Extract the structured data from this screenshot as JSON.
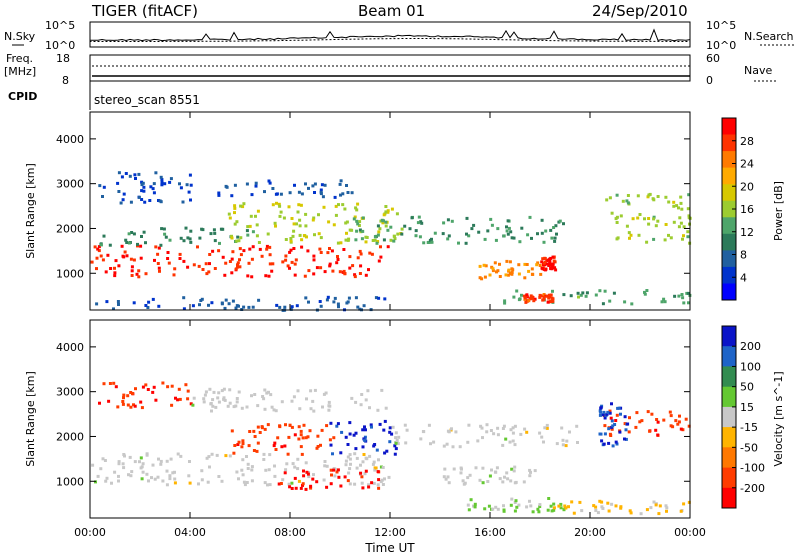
{
  "header": {
    "station": "TIGER (fitACF)",
    "beam": "Beam 01",
    "date": "24/Sep/2010"
  },
  "strips": {
    "nsky_label": "N.Sky",
    "nsky_ticks": [
      "10^5",
      "10^0"
    ],
    "nsearch_label": "N.Search",
    "freq_label_1": "Freq.",
    "freq_label_2": "[MHz]",
    "freq_ticks": [
      "18",
      "8"
    ],
    "nave_label": "Nave",
    "nave_ticks": [
      "60",
      "0"
    ],
    "cpid_label": "CPID",
    "cpid_value": "stereo_scan 8551"
  },
  "x_axis": {
    "label": "Time UT",
    "ticks": [
      "00:00",
      "04:00",
      "08:00",
      "12:00",
      "16:00",
      "20:00",
      "00:00"
    ]
  },
  "chart_data": [
    {
      "type": "heatmap",
      "title": "",
      "quantity": "Power",
      "xlabel": "Time UT",
      "ylabel": "Slant Range [km]",
      "xlim": [
        "00:00",
        "24:00"
      ],
      "ylim": [
        180,
        4600
      ],
      "yticks": [
        1000,
        2000,
        3000,
        4000
      ],
      "colorbar": {
        "label": "Power [dB]",
        "ticks": [
          "28",
          "24",
          "20",
          "16",
          "12",
          "8",
          "4"
        ],
        "colors": [
          "#ff0000",
          "#ff3300",
          "#ff7a00",
          "#ffaa00",
          "#d7c800",
          "#9ccc30",
          "#4ea56a",
          "#2c7a5a",
          "#2060a0",
          "#0033cc",
          "#0000ff"
        ],
        "range": [
          0,
          30
        ]
      },
      "regions": [
        {
          "t0": 0.0,
          "t1": 12.0,
          "r0": 950,
          "r1": 1650,
          "value": 27
        },
        {
          "t0": 0.3,
          "t1": 6.5,
          "r0": 1650,
          "r1": 2050,
          "value": 10
        },
        {
          "t0": 0.3,
          "t1": 4.2,
          "r0": 2600,
          "r1": 3300,
          "value": 5
        },
        {
          "t0": 5.5,
          "t1": 12.5,
          "r0": 1700,
          "r1": 2600,
          "value": 16
        },
        {
          "t0": 5.0,
          "t1": 10.5,
          "r0": 2700,
          "r1": 3100,
          "value": 6
        },
        {
          "t0": 10.5,
          "t1": 19.0,
          "r0": 1700,
          "r1": 2300,
          "value": 11
        },
        {
          "t0": 15.5,
          "t1": 18.0,
          "r0": 900,
          "r1": 1300,
          "value": 22
        },
        {
          "t0": 18.0,
          "t1": 18.6,
          "r0": 1100,
          "r1": 1400,
          "value": 28
        },
        {
          "t0": 16.5,
          "t1": 24.0,
          "r0": 350,
          "r1": 650,
          "value": 12
        },
        {
          "t0": 17.3,
          "t1": 18.5,
          "r0": 380,
          "r1": 560,
          "value": 26
        },
        {
          "t0": 20.6,
          "t1": 24.0,
          "r0": 1700,
          "r1": 2800,
          "value": 15
        },
        {
          "t0": 0.0,
          "t1": 12.0,
          "r0": 200,
          "r1": 500,
          "value": 6
        }
      ]
    },
    {
      "type": "heatmap",
      "title": "",
      "quantity": "Velocity",
      "xlabel": "Time UT",
      "ylabel": "Slant Range [km]",
      "xlim": [
        "00:00",
        "24:00"
      ],
      "ylim": [
        180,
        4600
      ],
      "yticks": [
        1000,
        2000,
        3000,
        4000
      ],
      "colorbar": {
        "label": "Velocity [m s^-1]",
        "ticks": [
          "200",
          "100",
          "50",
          "15",
          "-15",
          "-50",
          "-100",
          "-200"
        ],
        "colors": [
          "#0a14c8",
          "#1e64c8",
          "#328c50",
          "#64c832",
          "#c8c8c8",
          "#ffb400",
          "#ff7800",
          "#ff3c00",
          "#ff0000"
        ],
        "range": [
          -250,
          250
        ]
      },
      "regions": [
        {
          "t0": 0.0,
          "t1": 12.0,
          "r0": 950,
          "r1": 1650,
          "value": 0
        },
        {
          "t0": 0.3,
          "t1": 4.0,
          "r0": 2650,
          "r1": 3250,
          "value": -180
        },
        {
          "t0": 5.5,
          "t1": 9.8,
          "r0": 1600,
          "r1": 2300,
          "value": -170
        },
        {
          "t0": 7.5,
          "t1": 11.5,
          "r0": 850,
          "r1": 1300,
          "value": -210
        },
        {
          "t0": 9.5,
          "t1": 12.2,
          "r0": 1600,
          "r1": 2400,
          "value": 210
        },
        {
          "t0": 4.0,
          "t1": 12.0,
          "r0": 2600,
          "r1": 3100,
          "value": 0
        },
        {
          "t0": 12.0,
          "t1": 19.5,
          "r0": 1800,
          "r1": 2300,
          "value": 0
        },
        {
          "t0": 14.0,
          "t1": 18.0,
          "r0": 950,
          "r1": 1350,
          "value": 5
        },
        {
          "t0": 15.0,
          "t1": 19.0,
          "r0": 350,
          "r1": 650,
          "value": 40
        },
        {
          "t0": 18.5,
          "t1": 24.0,
          "r0": 300,
          "r1": 600,
          "value": -40
        },
        {
          "t0": 20.5,
          "t1": 24.0,
          "r0": 2000,
          "r1": 2600,
          "value": -180
        },
        {
          "t0": 20.3,
          "t1": 21.5,
          "r0": 1800,
          "r1": 2800,
          "value": 180
        }
      ]
    }
  ]
}
